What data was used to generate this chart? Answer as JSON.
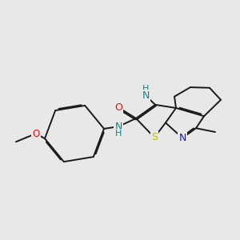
{
  "background_color": "#e8e8e8",
  "bond_color": "#1a1a1a",
  "bond_width": 1.4,
  "dbo": 0.07,
  "atom_colors": {
    "S": "#bbbb00",
    "N_blue": "#1010ee",
    "O": "#ee1010",
    "N_teal": "#008888",
    "C": "#1a1a1a"
  },
  "xlim": [
    -1.5,
    9.5
  ],
  "ylim": [
    -1.0,
    6.5
  ],
  "figsize": [
    3.0,
    3.0
  ],
  "dpi": 100
}
